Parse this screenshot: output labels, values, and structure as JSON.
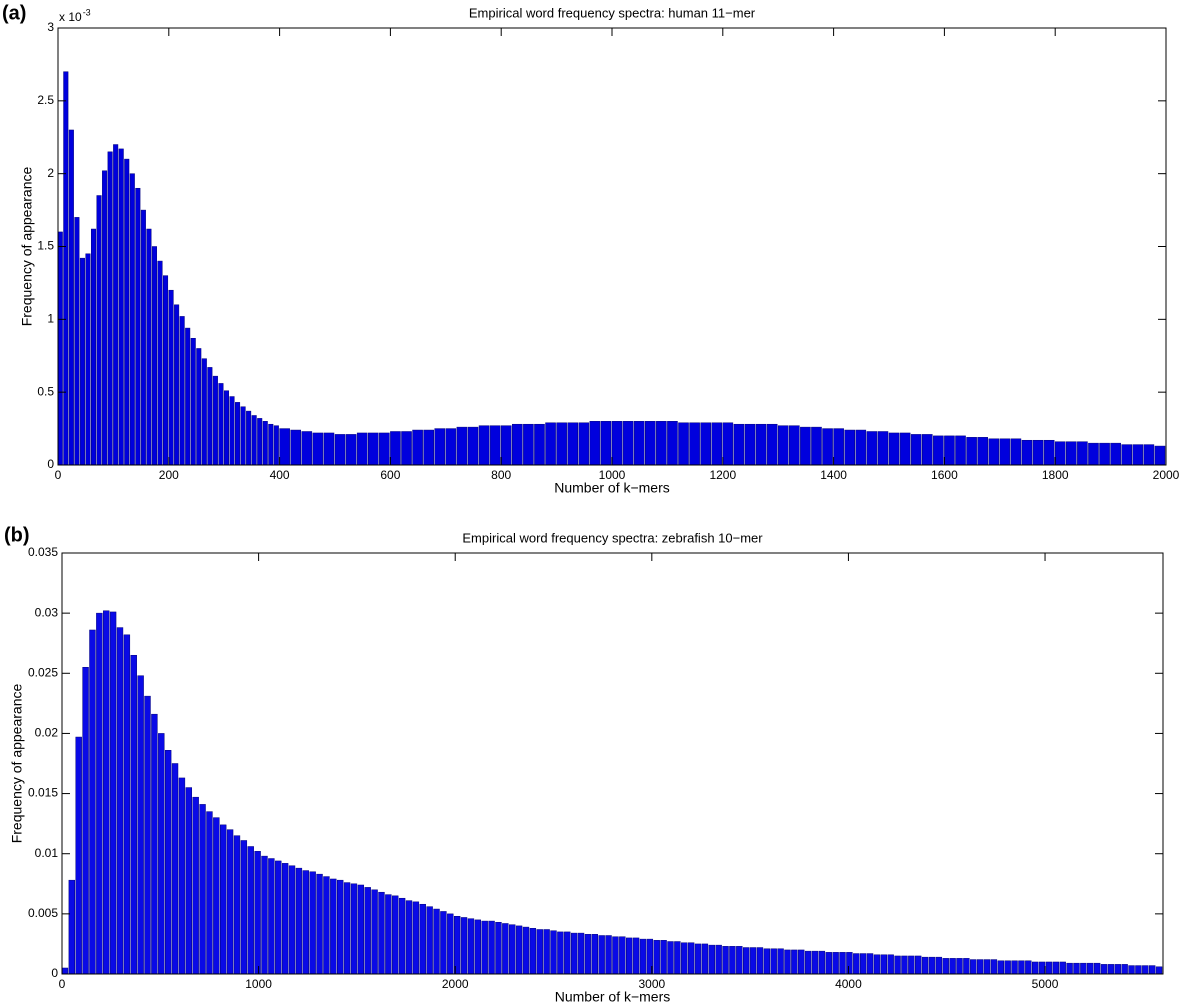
{
  "chart_data": [
    {
      "type": "histogram",
      "panel_label": "(a)",
      "title": "Empirical word frequency spectra: human 11−mer",
      "xlabel": "Number of k−mers",
      "ylabel": "Frequency of appearance",
      "y_multiplier": "x 10",
      "y_multiplier_exponent": "-3",
      "color": "#0000dd",
      "xlim": [
        0,
        2000
      ],
      "xticks": [
        0,
        200,
        400,
        600,
        800,
        1000,
        1200,
        1400,
        1600,
        1800,
        2000
      ],
      "ylim": [
        0,
        3
      ],
      "yticks": [
        0,
        0.5,
        1,
        1.5,
        2,
        2.5,
        3
      ],
      "bins": [
        0,
        10,
        20,
        30,
        40,
        50,
        60,
        70,
        80,
        90,
        100,
        110,
        120,
        130,
        140,
        150,
        160,
        170,
        180,
        190,
        200,
        210,
        220,
        230,
        240,
        250,
        260,
        270,
        280,
        290,
        300,
        310,
        320,
        330,
        340,
        350,
        360,
        370,
        380,
        390,
        400,
        420,
        440,
        460,
        480,
        500,
        520,
        540,
        560,
        580,
        600,
        620,
        640,
        660,
        680,
        700,
        720,
        740,
        760,
        780,
        800,
        820,
        840,
        860,
        880,
        900,
        920,
        940,
        960,
        980,
        1000,
        1020,
        1040,
        1060,
        1080,
        1100,
        1120,
        1140,
        1160,
        1180,
        1200,
        1220,
        1240,
        1260,
        1280,
        1300,
        1320,
        1340,
        1360,
        1380,
        1400,
        1420,
        1440,
        1460,
        1480,
        1500,
        1520,
        1540,
        1560,
        1580,
        1600,
        1620,
        1640,
        1660,
        1680,
        1700,
        1720,
        1740,
        1760,
        1780,
        1800,
        1820,
        1840,
        1860,
        1880,
        1900,
        1920,
        1940,
        1960,
        1980,
        2000
      ],
      "counts": [
        1.6,
        2.7,
        2.3,
        1.7,
        1.42,
        1.45,
        1.62,
        1.85,
        2.02,
        2.15,
        2.2,
        2.17,
        2.1,
        2.0,
        1.9,
        1.75,
        1.62,
        1.5,
        1.4,
        1.3,
        1.2,
        1.1,
        1.02,
        0.94,
        0.87,
        0.8,
        0.73,
        0.67,
        0.61,
        0.56,
        0.51,
        0.47,
        0.43,
        0.4,
        0.37,
        0.34,
        0.32,
        0.3,
        0.28,
        0.27,
        0.25,
        0.24,
        0.23,
        0.22,
        0.22,
        0.21,
        0.21,
        0.22,
        0.22,
        0.22,
        0.23,
        0.23,
        0.24,
        0.24,
        0.25,
        0.25,
        0.26,
        0.26,
        0.27,
        0.27,
        0.27,
        0.28,
        0.28,
        0.28,
        0.29,
        0.29,
        0.29,
        0.29,
        0.3,
        0.3,
        0.3,
        0.3,
        0.3,
        0.3,
        0.3,
        0.3,
        0.29,
        0.29,
        0.29,
        0.29,
        0.29,
        0.28,
        0.28,
        0.28,
        0.28,
        0.27,
        0.27,
        0.26,
        0.26,
        0.25,
        0.25,
        0.24,
        0.24,
        0.23,
        0.23,
        0.22,
        0.22,
        0.21,
        0.21,
        0.2,
        0.2,
        0.2,
        0.19,
        0.19,
        0.18,
        0.18,
        0.18,
        0.17,
        0.17,
        0.17,
        0.16,
        0.16,
        0.16,
        0.15,
        0.15,
        0.15,
        0.14,
        0.14,
        0.14,
        0.13
      ]
    },
    {
      "type": "histogram",
      "panel_label": "(b)",
      "title": "Empirical word frequency spectra: zebrafish 10−mer",
      "xlabel": "Number of k−mers",
      "ylabel": "Frequency of appearance",
      "color": "#0a0ae6",
      "xlim": [
        0,
        5600
      ],
      "xticks": [
        0,
        1000,
        2000,
        3000,
        4000,
        5000
      ],
      "ylim": [
        0,
        0.035
      ],
      "yticks": [
        0,
        0.005,
        0.01,
        0.015,
        0.02,
        0.025,
        0.03,
        0.035
      ],
      "bins": [
        0,
        35,
        70,
        105,
        140,
        175,
        210,
        245,
        280,
        315,
        350,
        385,
        420,
        455,
        490,
        525,
        560,
        595,
        630,
        665,
        700,
        735,
        770,
        805,
        840,
        875,
        910,
        945,
        980,
        1015,
        1050,
        1085,
        1120,
        1155,
        1190,
        1225,
        1260,
        1295,
        1330,
        1365,
        1400,
        1435,
        1470,
        1505,
        1540,
        1575,
        1610,
        1645,
        1680,
        1715,
        1750,
        1785,
        1820,
        1855,
        1890,
        1925,
        1960,
        1995,
        2030,
        2065,
        2100,
        2135,
        2170,
        2205,
        2240,
        2275,
        2310,
        2345,
        2380,
        2415,
        2450,
        2485,
        2520,
        2555,
        2590,
        2625,
        2660,
        2695,
        2730,
        2765,
        2800,
        2835,
        2870,
        2905,
        2940,
        2975,
        3010,
        3045,
        3080,
        3115,
        3150,
        3185,
        3220,
        3255,
        3290,
        3325,
        3360,
        3395,
        3430,
        3465,
        3500,
        3535,
        3570,
        3605,
        3640,
        3675,
        3710,
        3745,
        3780,
        3815,
        3850,
        3885,
        3920,
        3955,
        3990,
        4025,
        4060,
        4095,
        4130,
        4165,
        4200,
        4235,
        4270,
        4305,
        4340,
        4375,
        4410,
        4445,
        4480,
        4515,
        4550,
        4585,
        4620,
        4655,
        4690,
        4725,
        4760,
        4795,
        4830,
        4865,
        4900,
        4935,
        4970,
        5005,
        5040,
        5075,
        5110,
        5145,
        5180,
        5215,
        5250,
        5285,
        5320,
        5355,
        5390,
        5425,
        5460,
        5495,
        5530,
        5565,
        5600
      ],
      "counts": [
        0.0005,
        0.0078,
        0.0197,
        0.0255,
        0.0286,
        0.03,
        0.0302,
        0.0301,
        0.0288,
        0.0282,
        0.0265,
        0.0248,
        0.0231,
        0.0216,
        0.02,
        0.0186,
        0.0175,
        0.0163,
        0.0155,
        0.0147,
        0.0141,
        0.0135,
        0.013,
        0.0124,
        0.012,
        0.0115,
        0.0111,
        0.0106,
        0.0102,
        0.0098,
        0.0096,
        0.0094,
        0.0092,
        0.009,
        0.0088,
        0.0086,
        0.0085,
        0.0083,
        0.0081,
        0.0079,
        0.0078,
        0.0076,
        0.0075,
        0.0074,
        0.0072,
        0.007,
        0.0068,
        0.0066,
        0.0065,
        0.0063,
        0.0061,
        0.006,
        0.0058,
        0.0056,
        0.0054,
        0.0052,
        0.005,
        0.0048,
        0.0047,
        0.0046,
        0.0045,
        0.0044,
        0.0044,
        0.0043,
        0.0042,
        0.0041,
        0.004,
        0.0039,
        0.0038,
        0.0037,
        0.0037,
        0.0036,
        0.0035,
        0.0035,
        0.0034,
        0.0034,
        0.0033,
        0.0033,
        0.0032,
        0.0032,
        0.0031,
        0.0031,
        0.003,
        0.003,
        0.0029,
        0.0029,
        0.0028,
        0.0028,
        0.0027,
        0.0027,
        0.0026,
        0.0026,
        0.0025,
        0.0025,
        0.0024,
        0.0024,
        0.0023,
        0.0023,
        0.0023,
        0.0022,
        0.0022,
        0.0022,
        0.0021,
        0.0021,
        0.0021,
        0.002,
        0.002,
        0.002,
        0.0019,
        0.0019,
        0.0019,
        0.0018,
        0.0018,
        0.0018,
        0.0018,
        0.0017,
        0.0017,
        0.0017,
        0.0016,
        0.0016,
        0.0016,
        0.0015,
        0.0015,
        0.0015,
        0.0015,
        0.0014,
        0.0014,
        0.0014,
        0.0013,
        0.0013,
        0.0013,
        0.0013,
        0.0012,
        0.0012,
        0.0012,
        0.0012,
        0.0011,
        0.0011,
        0.0011,
        0.0011,
        0.0011,
        0.001,
        0.001,
        0.001,
        0.001,
        0.001,
        0.0009,
        0.0009,
        0.0009,
        0.0009,
        0.0009,
        0.0008,
        0.0008,
        0.0008,
        0.0008,
        0.0007,
        0.0007,
        0.0007,
        0.0007,
        0.0006
      ]
    }
  ]
}
